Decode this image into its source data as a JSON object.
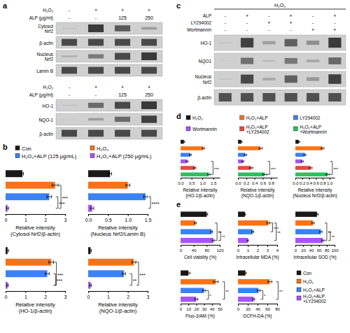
{
  "chart_data": [
    {
      "type": "blot",
      "panel": "a",
      "conditions": [
        {
          "name": "H₂O₂",
          "values": [
            "-",
            "+",
            "+",
            "+"
          ]
        },
        {
          "name": "ALP (μg/ml)",
          "values": [
            "-",
            "-",
            "125",
            "250"
          ]
        }
      ],
      "series": [
        {
          "name": "Cytosol\nNrf2",
          "values": [
            0.1,
            0.9,
            0.7,
            0.3
          ]
        },
        {
          "name": "β-actin",
          "values": [
            0.8,
            0.8,
            0.8,
            0.8
          ]
        },
        {
          "name": "Nucleus\nNrf2",
          "values": [
            0.2,
            0.5,
            0.8,
            0.9
          ]
        },
        {
          "name": "Lamin B",
          "values": [
            0.8,
            0.8,
            0.8,
            0.8
          ]
        }
      ]
    },
    {
      "type": "blot",
      "conditions": [
        {
          "name": "H₂O₂",
          "values": [
            "-",
            "+",
            "+",
            "+"
          ]
        },
        {
          "name": "ALP (μg/ml)",
          "values": [
            "-",
            "-",
            "125",
            "250"
          ]
        }
      ],
      "series": [
        {
          "name": "HO-1",
          "values": [
            0.1,
            0.6,
            0.8,
            0.9
          ]
        },
        {
          "name": "NQO-1",
          "values": [
            0.05,
            0.3,
            0.6,
            0.85
          ]
        },
        {
          "name": "β-actin",
          "values": [
            0.8,
            0.8,
            0.8,
            0.8
          ]
        }
      ]
    },
    {
      "type": "bar",
      "orientation": "horizontal",
      "panel": "b",
      "legend": "top",
      "tick_labels": "x",
      "categories": [
        "Con",
        "H₂O₂",
        "H₂O₂+ALP (125 μg/mL)",
        "H₂O₂+ALP (250 μg/mL)"
      ],
      "colors": [
        "#1a1a1a",
        "#f97316",
        "#3b82f6",
        "#a855f7"
      ],
      "values": [
        0.85,
        2.5,
        2.2,
        0.1
      ],
      "errors": [
        0.05,
        0.15,
        0.12,
        0.05
      ],
      "xlim": [
        0,
        3
      ],
      "xticks": [
        0,
        1,
        2,
        3
      ],
      "xlabel": "Relative intensity\n(Cytosol Nrf2/β-actin)",
      "annotations": [
        {
          "text": "***",
          "between": [
            3,
            1
          ]
        },
        {
          "text": "***",
          "between": [
            3,
            2
          ]
        }
      ]
    },
    {
      "type": "bar",
      "orientation": "horizontal",
      "tick_labels": "x",
      "categories": [
        null,
        null,
        null,
        null
      ],
      "colors": [
        "#1a1a1a",
        "#f97316",
        "#3b82f6",
        "#a855f7"
      ],
      "values": [
        0.55,
        1.0,
        1.45,
        0.1
      ],
      "errors": [
        0.04,
        0.05,
        0.05,
        0.04
      ],
      "xlim": [
        0,
        1.5
      ],
      "xticks": [
        {
          "value": 0,
          "label": "0.0"
        },
        0.5,
        {
          "value": 1,
          "label": "1.0"
        },
        1.5
      ],
      "xlabel": "Relative intensity\n(Nucleus Nrf2/Lamin B)",
      "annotations": [
        {
          "text": "****",
          "between": [
            3,
            2
          ]
        }
      ]
    },
    {
      "type": "bar",
      "orientation": "horizontal",
      "tick_labels": "x",
      "categories": [
        null,
        null,
        null,
        null
      ],
      "colors": [
        "#1a1a1a",
        "#f97316",
        "#3b82f6",
        "#a855f7"
      ],
      "values": [
        0.1,
        2.3,
        2.1,
        0.1
      ],
      "errors": [
        0.05,
        0.12,
        0.1,
        0.04
      ],
      "xlim": [
        0,
        3
      ],
      "xticks": [
        0,
        1,
        2,
        3
      ],
      "xlabel": "Relative intensity\n(HO-1/β-actin)",
      "annotations": [
        {
          "text": "***",
          "between": [
            3,
            1
          ]
        },
        {
          "text": "***",
          "between": [
            3,
            2
          ]
        }
      ]
    },
    {
      "type": "bar",
      "orientation": "horizontal",
      "tick_labels": "x",
      "categories": [
        null,
        null,
        null,
        null
      ],
      "colors": [
        "#1a1a1a",
        "#f97316",
        "#3b82f6",
        "#a855f7"
      ],
      "values": [
        0.12,
        2.3,
        1.8,
        0.12
      ],
      "errors": [
        0.04,
        0.1,
        0.08,
        0.04
      ],
      "xlim": [
        0,
        3
      ],
      "xticks": [
        0,
        1,
        2,
        3
      ],
      "xlabel": "Relative intensity\n(NQO-1/β-actin)",
      "annotations": [
        {
          "text": "***",
          "between": [
            3,
            1
          ]
        },
        {
          "text": "**",
          "between": [
            3,
            2
          ]
        }
      ]
    },
    {
      "type": "blot",
      "panel": "c",
      "title": "H₂O₂",
      "conditions": [
        {
          "name": "ALP",
          "values": [
            "-",
            "+",
            "-",
            "+",
            "-",
            "+"
          ]
        },
        {
          "name": "LY294002",
          "values": [
            "-",
            "-",
            "+",
            "+",
            "-",
            "-"
          ]
        },
        {
          "name": "Wortmannin",
          "values": [
            "-",
            "-",
            "-",
            "-",
            "+",
            "+"
          ]
        }
      ],
      "series": [
        {
          "name": "HO-1",
          "values": [
            0.1,
            0.9,
            0.3,
            0.7,
            0.4,
            0.95
          ]
        },
        {
          "name": "NQO1",
          "values": [
            0.05,
            0.6,
            0.15,
            0.55,
            0.25,
            0.65
          ]
        },
        {
          "name": "Nucleus\nNrf2",
          "values": [
            0.1,
            0.85,
            0.25,
            0.7,
            0.35,
            0.9
          ]
        },
        {
          "name": "β-actin",
          "values": [
            0.8,
            0.8,
            0.8,
            0.8,
            0.8,
            0.8
          ]
        }
      ]
    },
    {
      "type": "bar",
      "orientation": "horizontal",
      "panel": "d",
      "legend": "top",
      "tick_labels": "x",
      "categories": [
        "H₂O₂",
        "H₂O₂+ALP",
        "LY294002",
        "Wortmannin",
        "H₂O₂+ALP\n+LY294002",
        "H₂O₂+ALP\n+Wortmannin"
      ],
      "colors": [
        "#1a1a1a",
        "#f97316",
        "#3b82f6",
        "#a855f7",
        "#ef4444",
        "#22c55e"
      ],
      "values": [
        0.15,
        1.05,
        0.45,
        0.3,
        0.65,
        1.3
      ],
      "errors": [
        0.04,
        0.05,
        0.04,
        0.04,
        0.05,
        0.06
      ],
      "xlim": [
        0,
        1.8
      ],
      "xticks": [
        {
          "value": 0,
          "label": "0.0"
        },
        0.5,
        {
          "value": 1,
          "label": "1.0"
        },
        1.5
      ],
      "xlabel": "Relative intensity\n(HO-1/β-actin)",
      "annotations": [
        {
          "text": "***",
          "between": [
            5,
            3
          ]
        }
      ]
    },
    {
      "type": "bar",
      "orientation": "horizontal",
      "tick_labels": "x",
      "categories": [
        null,
        null,
        null,
        null,
        null,
        null
      ],
      "colors": [
        "#1a1a1a",
        "#f97316",
        "#3b82f6",
        "#a855f7",
        "#ef4444",
        "#22c55e"
      ],
      "values": [
        0.08,
        0.55,
        0.18,
        0.12,
        0.32,
        0.65
      ],
      "errors": [
        0.02,
        0.04,
        0.03,
        0.02,
        0.04,
        0.05
      ],
      "xlim": [
        0,
        0.95
      ],
      "xticks": [
        {
          "value": 0,
          "label": "0.0"
        },
        0.2,
        0.4,
        0.6,
        0.8
      ],
      "xlabel": "Relative intensity\n(NQO-1/β-actin)",
      "annotations": [
        {
          "text": "***",
          "between": [
            5,
            3
          ]
        }
      ]
    },
    {
      "type": "bar",
      "orientation": "horizontal",
      "tick_labels": "x",
      "categories": [
        null,
        null,
        null,
        null,
        null,
        null
      ],
      "colors": [
        "#1a1a1a",
        "#f97316",
        "#3b82f6",
        "#a855f7",
        "#ef4444",
        "#22c55e"
      ],
      "values": [
        0.1,
        0.8,
        0.28,
        0.2,
        0.45,
        0.95
      ],
      "errors": [
        0.03,
        0.04,
        0.03,
        0.03,
        0.04,
        0.05
      ],
      "xlim": [
        0,
        1.15
      ],
      "xticks": [
        {
          "value": 0,
          "label": "0.0"
        },
        0.2,
        0.4,
        0.6,
        0.8,
        {
          "value": 1,
          "label": "1.0"
        }
      ],
      "xlabel": "Relative intensity\n(Nucleus Nrf2/β-actin)",
      "annotations": [
        {
          "text": "***",
          "between": [
            5,
            3
          ]
        }
      ]
    },
    {
      "type": "bar",
      "orientation": "horizontal",
      "panel": "e",
      "legend": "right",
      "tick_labels": "x",
      "categories": [
        "Con",
        "H₂O₂",
        "H₂O₂+ALP",
        "H₂O₂+ALP\n+LY294002"
      ],
      "colors": [
        "#1a1a1a",
        "#f97316",
        "#3b82f6",
        "#a855f7"
      ],
      "values": [
        80,
        45,
        95,
        100
      ],
      "errors": [
        3,
        3,
        3,
        3
      ],
      "xlim": [
        0,
        120
      ],
      "xticks": [
        0,
        40,
        80,
        120
      ],
      "xlabel": "Cell viability (%)",
      "annotations": [
        {
          "text": "**",
          "between": [
            3,
            1
          ]
        },
        {
          "text": "**",
          "between": [
            3,
            2
          ]
        }
      ]
    },
    {
      "type": "bar",
      "orientation": "horizontal",
      "tick_labels": "x",
      "categories": [
        null,
        null,
        null,
        null
      ],
      "colors": [
        "#1a1a1a",
        "#f97316",
        "#3b82f6",
        "#a855f7"
      ],
      "values": [
        0.7,
        3.1,
        1.5,
        1.0
      ],
      "errors": [
        0.06,
        0.15,
        0.1,
        0.07
      ],
      "xlim": [
        0,
        4
      ],
      "xticks": [
        0,
        1,
        2,
        3,
        4
      ],
      "xlabel": "Intracellular MDA (%)",
      "annotations": [
        {
          "text": "***",
          "between": [
            1,
            2
          ]
        },
        {
          "text": "**",
          "between": [
            1,
            3
          ]
        }
      ]
    },
    {
      "type": "bar",
      "orientation": "horizontal",
      "tick_labels": "x",
      "categories": [
        null,
        null,
        null,
        null
      ],
      "colors": [
        "#1a1a1a",
        "#f97316",
        "#3b82f6",
        "#a855f7"
      ],
      "values": [
        55,
        45,
        65,
        70
      ],
      "errors": [
        3,
        3,
        3,
        3
      ],
      "xlim": [
        0,
        100
      ],
      "xticks": [
        0,
        20,
        40,
        60,
        80,
        100
      ],
      "xlabel": "Intracellular SOD (%)",
      "annotations": [
        {
          "text": "**",
          "between": [
            3,
            1
          ]
        },
        {
          "text": "**",
          "between": [
            3,
            2
          ]
        }
      ]
    },
    {
      "type": "bar",
      "orientation": "horizontal",
      "tick_labels": "x",
      "categories": [
        null,
        null,
        null,
        null
      ],
      "colors": [
        "#1a1a1a",
        "#f97316",
        "#3b82f6",
        "#a855f7"
      ],
      "values": [
        10,
        45,
        30,
        20
      ],
      "errors": [
        2,
        3,
        2,
        2
      ],
      "xlim": [
        0,
        50
      ],
      "xticks": [
        0,
        10,
        20,
        30,
        40,
        50
      ],
      "xlabel": "Fluo-3/AM (%)",
      "annotations": [
        {
          "text": "*",
          "between": [
            3,
            2
          ]
        },
        {
          "text": "**",
          "between": [
            3,
            1
          ]
        }
      ]
    },
    {
      "type": "bar",
      "orientation": "horizontal",
      "tick_labels": "x",
      "categories": [
        null,
        null,
        null,
        null
      ],
      "colors": [
        "#1a1a1a",
        "#f97316",
        "#3b82f6",
        "#a855f7"
      ],
      "values": [
        15,
        65,
        42,
        32
      ],
      "errors": [
        2,
        4,
        3,
        2
      ],
      "xlim": [
        0,
        80
      ],
      "xticks": [
        0,
        20,
        40,
        60,
        80
      ],
      "xlabel": "DCFH-DA (%)",
      "annotations": [
        {
          "text": "*",
          "between": [
            3,
            2
          ]
        },
        {
          "text": "**",
          "between": [
            3,
            1
          ]
        }
      ]
    }
  ]
}
